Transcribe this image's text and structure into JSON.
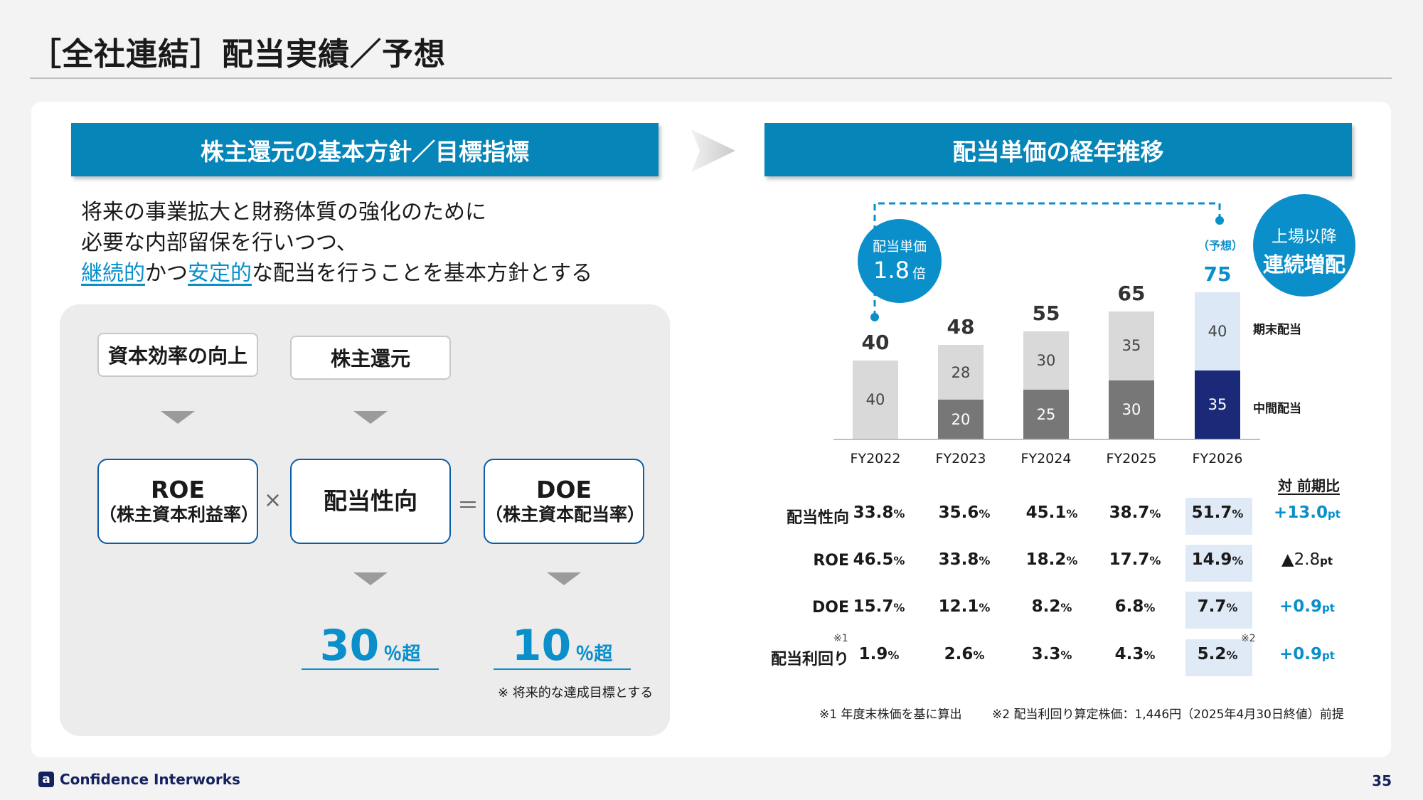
{
  "page": {
    "title": "［全社連結］配当実績／予想",
    "number": "35",
    "company": "Confidence Interworks"
  },
  "left": {
    "band_title": "株主還元の基本方針／目標指標",
    "policy_lines": [
      "将来の事業拡大と財務体質の強化のために",
      "必要な内部留保を行いつつ、"
    ],
    "policy_line3": {
      "hl1": "継続的",
      "mid": "かつ",
      "hl2": "安定的",
      "tail": "な配当を行うことを基本方針とする"
    },
    "tags": {
      "capital": "資本効率の向上",
      "return": "株主還元"
    },
    "roe": {
      "label": "ROE",
      "sub": "（株主資本利益率）"
    },
    "payout": {
      "label": "配当性向"
    },
    "doe": {
      "label": "DOE",
      "sub": "（株主資本配当率）"
    },
    "operators": {
      "times": "×",
      "equals": "＝"
    },
    "targets": {
      "payout": {
        "value": "30",
        "unit": "％超"
      },
      "doe": {
        "value": "10",
        "unit": "％超"
      }
    },
    "note": "※ 将来的な達成目標とする"
  },
  "right": {
    "band_title": "配当単価の経年推移",
    "growth_circle": {
      "line1": "配当単価",
      "value": "1.8",
      "unit": "倍"
    },
    "streak_circle": {
      "line1": "上場以降",
      "line2": "連続増配"
    },
    "forecast_label": "（予想）",
    "legend": {
      "year_end": "期末配当",
      "interim": "中間配当"
    },
    "yoy_header": "対 前期比",
    "footnotes": {
      "fn1": "※1 年度末株価を基に算出",
      "fn2": "※2 配当利回り算定株価：1,446円（2025年4月30日終値）前提"
    },
    "markers": {
      "m1": "※1",
      "m2": "※2"
    }
  },
  "chart_data": {
    "type": "bar",
    "stacked": true,
    "categories": [
      "FY2022",
      "FY2023",
      "FY2024",
      "FY2025",
      "FY2026"
    ],
    "series": [
      {
        "name": "中間配当",
        "values": [
          0,
          20,
          25,
          30,
          35
        ]
      },
      {
        "name": "期末配当",
        "values": [
          40,
          28,
          30,
          35,
          40
        ]
      }
    ],
    "totals": [
      40,
      48,
      55,
      65,
      75
    ],
    "forecast_category": "FY2026",
    "colors": {
      "interim": "#777777",
      "year_end": "#d9d9d9",
      "forecast_interim": "#1a2a78",
      "forecast_year_end": "#dce8f5"
    }
  },
  "metrics_table": {
    "rows": [
      {
        "label": "配当性向",
        "values": [
          "33.8",
          "35.6",
          "45.1",
          "38.7",
          "51.7"
        ],
        "unit": "%",
        "yoy": "+13.0",
        "yoy_unit": "pt",
        "yoy_style": "blue"
      },
      {
        "label": "ROE",
        "values": [
          "46.5",
          "33.8",
          "18.2",
          "17.7",
          "14.9"
        ],
        "unit": "%",
        "yoy": "▲2.8",
        "yoy_unit": "pt",
        "yoy_style": "black"
      },
      {
        "label": "DOE",
        "values": [
          "15.7",
          "12.1",
          "8.2",
          "6.8",
          "7.7"
        ],
        "unit": "%",
        "yoy": "+0.9",
        "yoy_unit": "pt",
        "yoy_style": "blue"
      },
      {
        "label": "配当利回り",
        "values": [
          "1.9",
          "2.6",
          "3.3",
          "4.3",
          "5.2"
        ],
        "unit": "%",
        "yoy": "+0.9",
        "yoy_unit": "pt",
        "yoy_style": "blue"
      }
    ]
  }
}
